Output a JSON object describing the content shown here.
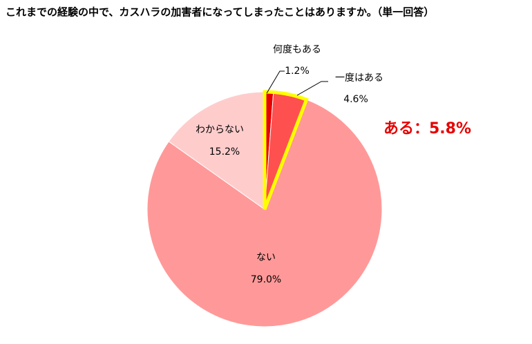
{
  "chart_data": {
    "type": "pie",
    "title": "これまでの経験の中で、カスハラの加害者になってしまったことはありますか。（単一回答）",
    "categories": [
      "何度もある",
      "一度はある",
      "ない",
      "わからない"
    ],
    "values": [
      1.2,
      4.6,
      79.0,
      15.2
    ],
    "value_labels": [
      "1.2%",
      "4.6%",
      "79.0%",
      "15.2%"
    ],
    "colors": [
      "#e60000",
      "#ff5050",
      "#ff9999",
      "#ffcccc"
    ],
    "highlight_slices": [
      0,
      1
    ],
    "highlight_color": "#ffff00",
    "annotation": "ある：5.8%"
  }
}
